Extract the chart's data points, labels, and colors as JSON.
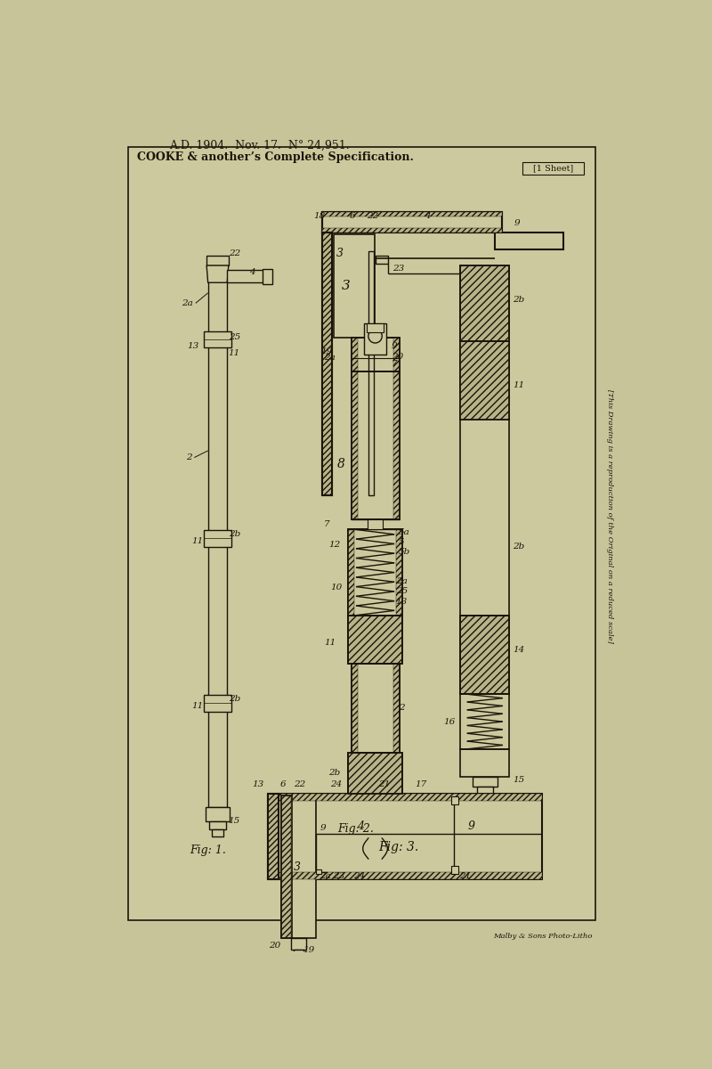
{
  "bg_color": "#c8c49a",
  "paper_color": "#cdc99f",
  "line_color": "#1a1508",
  "title_line1": "A.D. 1904.  Nov. 17.  N° 24,951.",
  "title_line2": "COOKE & another’s Complete Specification.",
  "sheet_label": "[1 Sheet]",
  "fig1_label": "Fig: 1.",
  "fig2_label": "Fig: 2.",
  "fig3_label": "Fig: 3.",
  "footer": "Malby & Sons Photo-Litho",
  "sideways_text": "[This Drawing is a reproduction of the Original on a reduced scale]"
}
